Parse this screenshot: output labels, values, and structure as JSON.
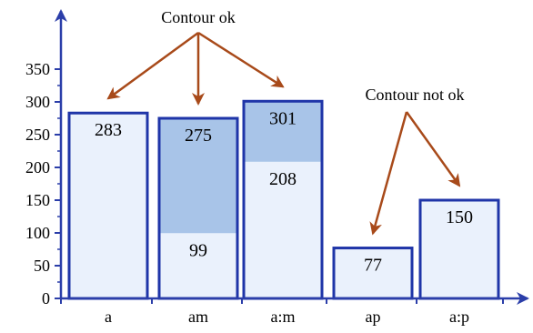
{
  "chart_data": {
    "type": "bar",
    "categories": [
      "a",
      "am",
      "a:m",
      "ap",
      "a:p"
    ],
    "totals": [
      283,
      275,
      301,
      77,
      150
    ],
    "lower_segment": [
      null,
      99,
      208,
      null,
      null
    ],
    "value_labels": [
      {
        "category": "a",
        "text": "283",
        "value": 283
      },
      {
        "category": "am",
        "text": "275",
        "value": 275
      },
      {
        "category": "am",
        "text": "99",
        "value": 99
      },
      {
        "category": "a:m",
        "text": "301",
        "value": 301
      },
      {
        "category": "a:m",
        "text": "208",
        "value": 208
      },
      {
        "category": "ap",
        "text": "77",
        "value": 77
      },
      {
        "category": "a:p",
        "text": "150",
        "value": 150
      }
    ],
    "ylim": [
      0,
      370
    ],
    "yticks": [
      0,
      50,
      100,
      150,
      200,
      250,
      300,
      350
    ],
    "title": "",
    "xlabel": "",
    "ylabel": "",
    "grid": false,
    "legend": "none",
    "annotations": [
      {
        "text": "Contour ok",
        "targets": [
          "a",
          "am",
          "a:m"
        ]
      },
      {
        "text": "Contour not ok",
        "targets": [
          "ap",
          "a:p"
        ]
      }
    ],
    "colors": {
      "bar_fill": "#eaf1fc",
      "upper_segment_fill": "#a8c4e8",
      "bar_outline": "#1f35a8",
      "axis": "#2b3ea9",
      "arrow": "#a84a1a"
    }
  }
}
